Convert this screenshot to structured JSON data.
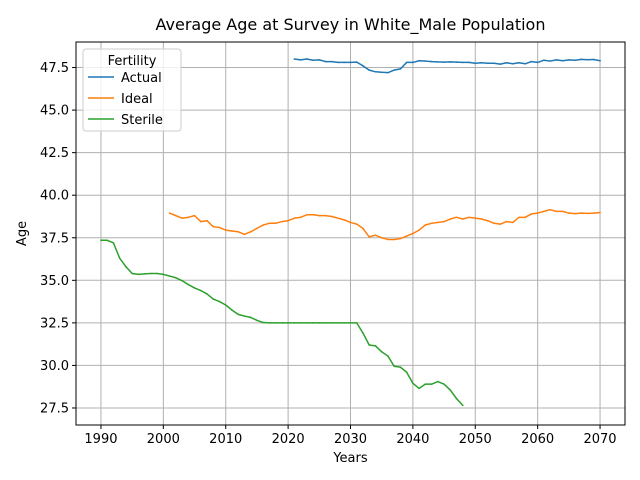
{
  "chart_data": {
    "type": "line",
    "title": "Average Age at Survey in White_Male Population",
    "xlabel": "Years",
    "ylabel": "Age",
    "xlim": [
      1986.0,
      2074.0
    ],
    "ylim": [
      26.5,
      49.0
    ],
    "xticks": [
      1990,
      2000,
      2010,
      2020,
      2030,
      2040,
      2050,
      2060,
      2070
    ],
    "xtick_labels": [
      "1990",
      "2000",
      "2010",
      "2020",
      "2030",
      "2040",
      "2050",
      "2060",
      "2070"
    ],
    "yticks": [
      27.5,
      30.0,
      32.5,
      35.0,
      37.5,
      40.0,
      42.5,
      45.0,
      47.5
    ],
    "ytick_labels": [
      "27.5",
      "30.0",
      "32.5",
      "35.0",
      "37.5",
      "40.0",
      "42.5",
      "45.0",
      "47.5"
    ],
    "grid": true,
    "legend": {
      "title": "Fertility",
      "placement": "top-left"
    },
    "series": [
      {
        "name": "Actual",
        "color": "#1f77b4",
        "x": [
          2021,
          2022,
          2023,
          2024,
          2025,
          2026,
          2027,
          2028,
          2029,
          2030,
          2031,
          2032,
          2033,
          2034,
          2035,
          2036,
          2037,
          2038,
          2039,
          2040,
          2041,
          2042,
          2043,
          2044,
          2045,
          2046,
          2047,
          2048,
          2049,
          2050,
          2051,
          2052,
          2053,
          2054,
          2055,
          2056,
          2057,
          2058,
          2059,
          2060,
          2061,
          2062,
          2063,
          2064,
          2065,
          2066,
          2067,
          2068,
          2069,
          2070
        ],
        "y": [
          48.0,
          47.95,
          48.0,
          47.93,
          47.95,
          47.85,
          47.85,
          47.8,
          47.8,
          47.8,
          47.82,
          47.6,
          47.35,
          47.25,
          47.22,
          47.2,
          47.35,
          47.42,
          47.8,
          47.8,
          47.9,
          47.88,
          47.85,
          47.83,
          47.82,
          47.83,
          47.82,
          47.8,
          47.8,
          47.75,
          47.78,
          47.75,
          47.75,
          47.7,
          47.78,
          47.72,
          47.78,
          47.72,
          47.85,
          47.8,
          47.93,
          47.88,
          47.95,
          47.9,
          47.95,
          47.93,
          47.98,
          47.96,
          47.97,
          47.9
        ]
      },
      {
        "name": "Ideal",
        "color": "#ff7f0e",
        "x": [
          2001,
          2002,
          2003,
          2004,
          2005,
          2006,
          2007,
          2008,
          2009,
          2010,
          2011,
          2012,
          2013,
          2014,
          2015,
          2016,
          2017,
          2018,
          2019,
          2020,
          2021,
          2022,
          2023,
          2024,
          2025,
          2026,
          2027,
          2028,
          2029,
          2030,
          2031,
          2032,
          2033,
          2034,
          2035,
          2036,
          2037,
          2038,
          2039,
          2040,
          2041,
          2042,
          2043,
          2044,
          2045,
          2046,
          2047,
          2048,
          2049,
          2050,
          2051,
          2052,
          2053,
          2054,
          2055,
          2056,
          2057,
          2058,
          2059,
          2060,
          2061,
          2062,
          2063,
          2064,
          2065,
          2066,
          2067,
          2068,
          2069,
          2070
        ],
        "y": [
          38.95,
          38.8,
          38.65,
          38.7,
          38.8,
          38.45,
          38.5,
          38.15,
          38.1,
          37.95,
          37.9,
          37.85,
          37.7,
          37.85,
          38.05,
          38.25,
          38.35,
          38.35,
          38.45,
          38.5,
          38.65,
          38.7,
          38.85,
          38.85,
          38.8,
          38.8,
          38.75,
          38.65,
          38.55,
          38.4,
          38.3,
          38.05,
          37.55,
          37.65,
          37.5,
          37.4,
          37.4,
          37.45,
          37.6,
          37.75,
          37.95,
          38.25,
          38.35,
          38.4,
          38.45,
          38.6,
          38.7,
          38.6,
          38.7,
          38.65,
          38.6,
          38.5,
          38.35,
          38.3,
          38.45,
          38.4,
          38.7,
          38.7,
          38.9,
          38.95,
          39.05,
          39.15,
          39.05,
          39.05,
          38.95,
          38.92,
          38.95,
          38.93,
          38.95,
          38.98
        ]
      },
      {
        "name": "Sterile",
        "color": "#2ca02c",
        "x": [
          1990,
          1991,
          1992,
          1993,
          1994,
          1995,
          1996,
          1997,
          1998,
          1999,
          2000,
          2001,
          2002,
          2003,
          2004,
          2005,
          2006,
          2007,
          2008,
          2009,
          2010,
          2011,
          2012,
          2013,
          2014,
          2015,
          2016,
          2017,
          2018,
          2019,
          2020,
          2021,
          2022,
          2023,
          2024,
          2025,
          2026,
          2027,
          2028,
          2029,
          2030,
          2031,
          2032,
          2033,
          2034,
          2035,
          2036,
          2037,
          2038,
          2039,
          2040,
          2041,
          2042,
          2043,
          2044,
          2045,
          2046,
          2047,
          2048
        ],
        "y": [
          37.35,
          37.35,
          37.2,
          36.3,
          35.8,
          35.4,
          35.35,
          35.38,
          35.4,
          35.4,
          35.35,
          35.25,
          35.15,
          34.98,
          34.75,
          34.55,
          34.4,
          34.2,
          33.9,
          33.75,
          33.55,
          33.25,
          33.0,
          32.9,
          32.82,
          32.65,
          32.52,
          32.5,
          32.5,
          32.5,
          32.5,
          32.5,
          32.5,
          32.5,
          32.5,
          32.5,
          32.5,
          32.5,
          32.5,
          32.5,
          32.5,
          32.5,
          31.9,
          31.2,
          31.15,
          30.8,
          30.55,
          29.95,
          29.9,
          29.6,
          28.95,
          28.65,
          28.9,
          28.9,
          29.05,
          28.9,
          28.55,
          28.05,
          27.65
        ]
      }
    ]
  }
}
